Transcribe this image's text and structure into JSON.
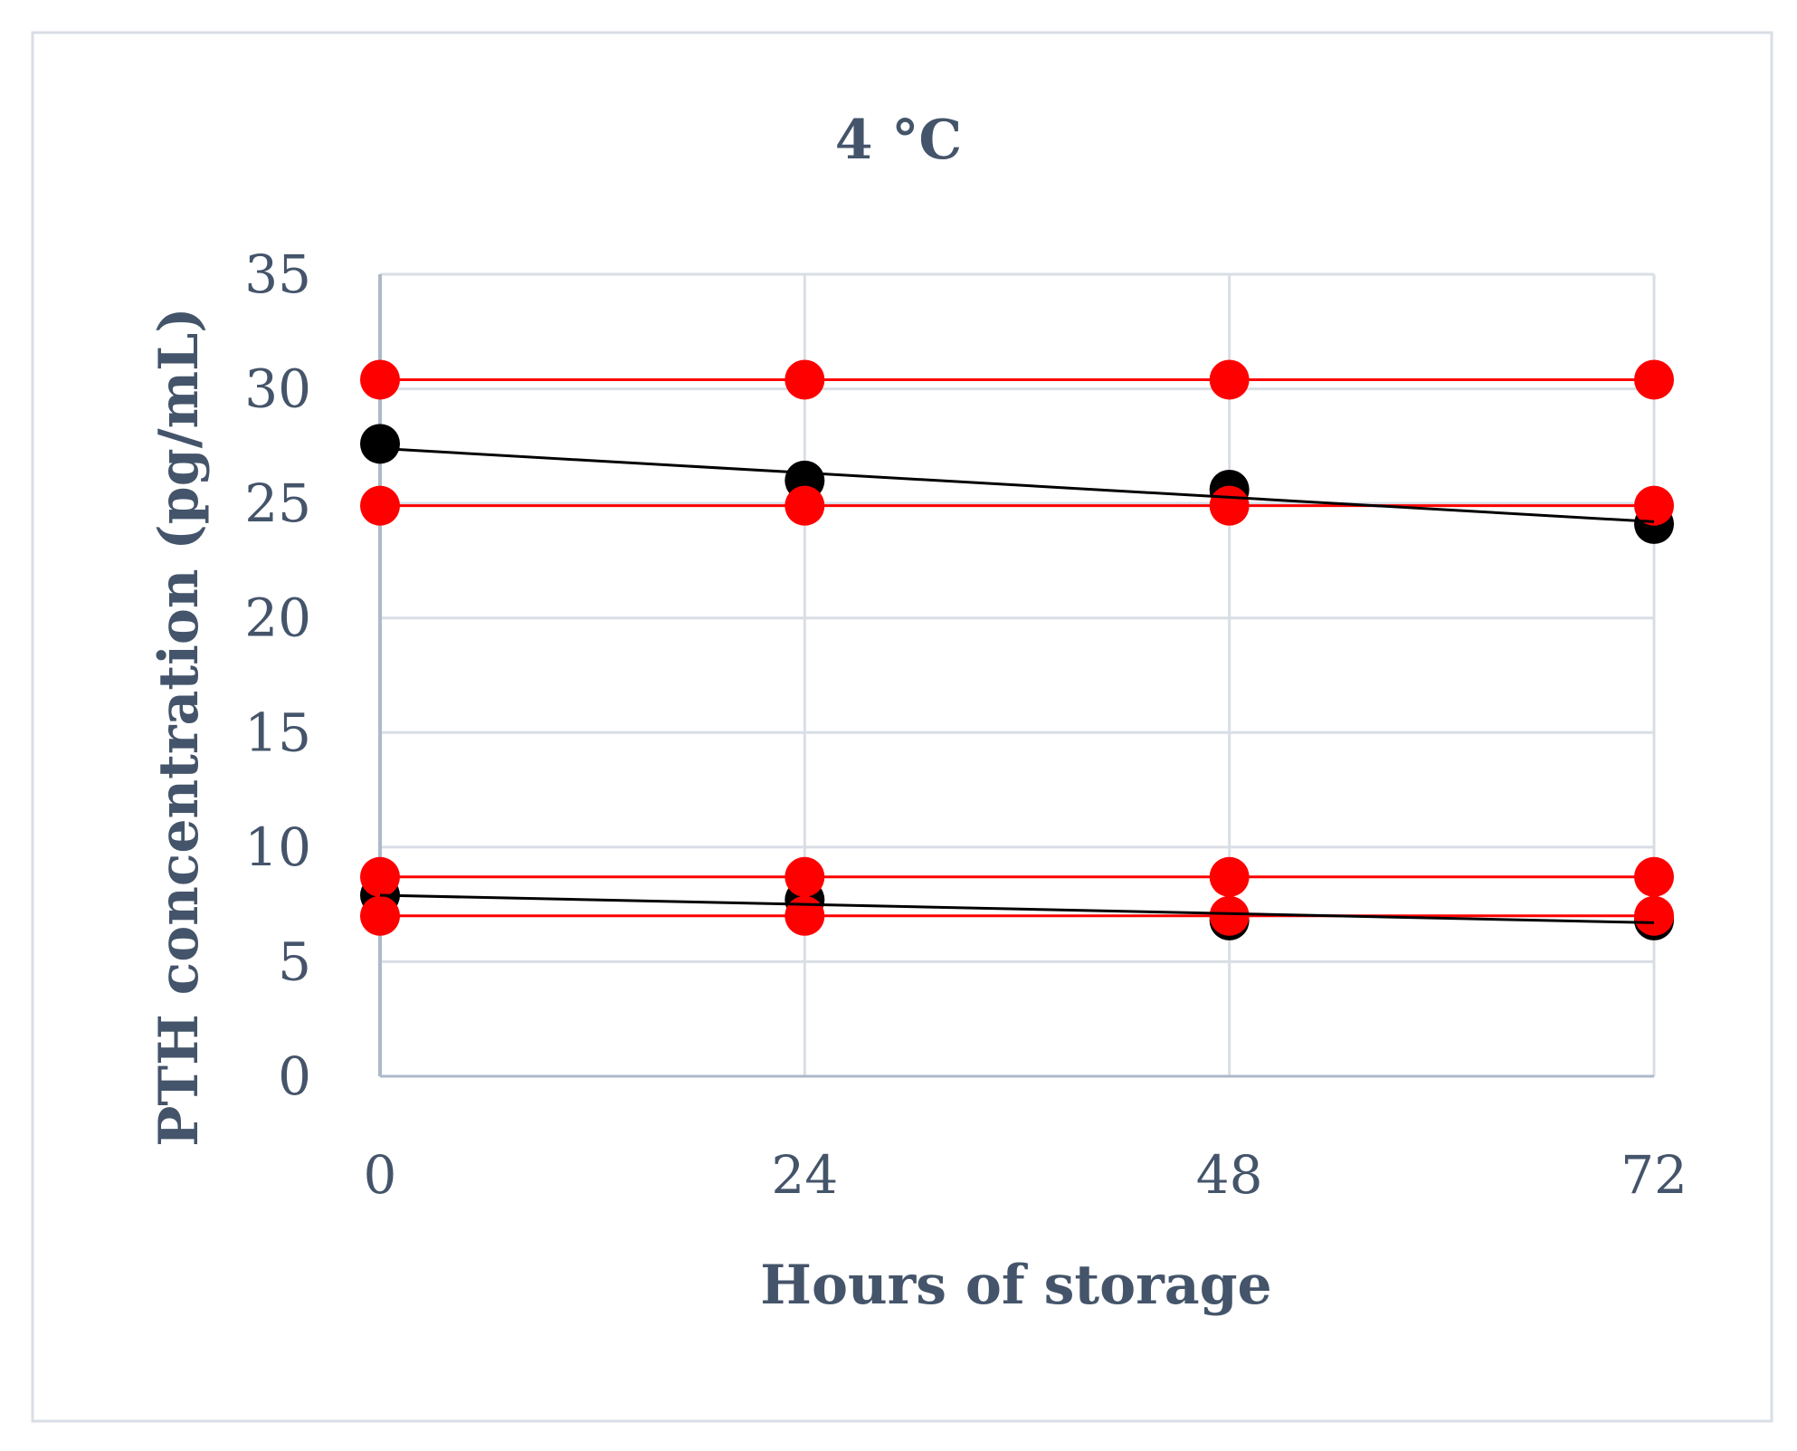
{
  "chart_data": {
    "type": "scatter",
    "title": "4 °C",
    "xlabel": "Hours of storage",
    "ylabel": "PTH concentration (pg/mL)",
    "x_ticks": [
      0,
      24,
      48,
      72
    ],
    "y_ticks": [
      0,
      5,
      10,
      15,
      20,
      25,
      30,
      35
    ],
    "xlim": [
      0,
      72
    ],
    "ylim": [
      0,
      35
    ],
    "grid": true,
    "legend": "none",
    "series": [
      {
        "color": "#000000",
        "marker": "circle",
        "trendline": "linear",
        "x": [
          0,
          24,
          48,
          72
        ],
        "y": [
          27.6,
          26.0,
          25.6,
          24.1
        ]
      },
      {
        "color": "#000000",
        "marker": "circle",
        "trendline": "linear",
        "x": [
          0,
          24,
          48,
          72
        ],
        "y": [
          7.9,
          7.7,
          6.8,
          6.8
        ]
      },
      {
        "color": "#ff0000",
        "marker": "circle",
        "trendline": "horizontal",
        "x": [
          0,
          24,
          48,
          72
        ],
        "y": [
          30.4,
          30.4,
          30.4,
          30.4
        ]
      },
      {
        "color": "#ff0000",
        "marker": "circle",
        "trendline": "horizontal",
        "x": [
          0,
          24,
          48,
          72
        ],
        "y": [
          24.9,
          24.9,
          24.9,
          24.9
        ]
      },
      {
        "color": "#ff0000",
        "marker": "circle",
        "trendline": "horizontal",
        "x": [
          0,
          24,
          48,
          72
        ],
        "y": [
          8.7,
          8.7,
          8.7,
          8.7
        ]
      },
      {
        "color": "#ff0000",
        "marker": "circle",
        "trendline": "horizontal",
        "x": [
          0,
          24,
          48,
          72
        ],
        "y": [
          7.0,
          7.0,
          7.0,
          7.0
        ]
      }
    ],
    "black_trendlines": [
      {
        "x": [
          0,
          72
        ],
        "y": [
          27.4,
          24.2
        ]
      },
      {
        "x": [
          0,
          72
        ],
        "y": [
          7.9,
          6.7
        ]
      }
    ]
  }
}
